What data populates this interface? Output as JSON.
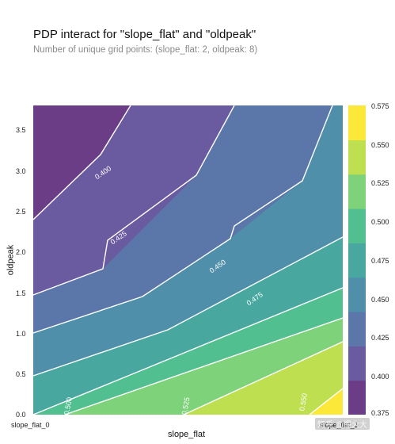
{
  "title": "PDP interact for \"slope_flat\" and \"oldpeak\"",
  "subtitle": "Number of unique grid points: (slope_flat: 2, oldpeak: 8)",
  "chart_data": {
    "type": "contour",
    "title": "PDP interact for \"slope_flat\" and \"oldpeak\"",
    "subtitle": "Number of unique grid points: (slope_flat: 2, oldpeak: 8)",
    "xlabel": "slope_flat",
    "ylabel": "oldpeak",
    "xtick_labels": [
      "slope_flat_0",
      "slope_flat_1"
    ],
    "x_watermark_overlap": "slope_flat_1",
    "ylim": [
      0.0,
      3.8
    ],
    "yticks": [
      "0.0",
      "0.5",
      "1.0",
      "1.5",
      "2.0",
      "2.5",
      "3.0",
      "3.5"
    ],
    "contour_levels": [
      0.375,
      0.4,
      0.425,
      0.45,
      0.475,
      0.5,
      0.525,
      0.55,
      0.575
    ],
    "contour_labels": [
      {
        "text": "0.400",
        "x": 0.23,
        "y": 2.95
      },
      {
        "text": "0.425",
        "x": 0.28,
        "y": 2.15
      },
      {
        "text": "0.450",
        "x": 0.6,
        "y": 1.8
      },
      {
        "text": "0.475",
        "x": 0.72,
        "y": 1.4
      },
      {
        "text": "0.500",
        "x": 0.12,
        "y": 0.1
      },
      {
        "text": "0.525",
        "x": 0.5,
        "y": 0.1
      },
      {
        "text": "0.550",
        "x": 0.88,
        "y": 0.15
      }
    ],
    "colorbar": {
      "labels": [
        "0.375",
        "0.400",
        "0.425",
        "0.450",
        "0.475",
        "0.500",
        "0.525",
        "0.550",
        "0.575"
      ],
      "colors": [
        "#6a3d86",
        "#6a5ba0",
        "#5b76a8",
        "#4f8fa9",
        "#48a8a0",
        "#52bf90",
        "#7dd27a",
        "#bddf50",
        "#fce838"
      ]
    },
    "grid": false
  },
  "watermark": "知乎 @慢大大"
}
